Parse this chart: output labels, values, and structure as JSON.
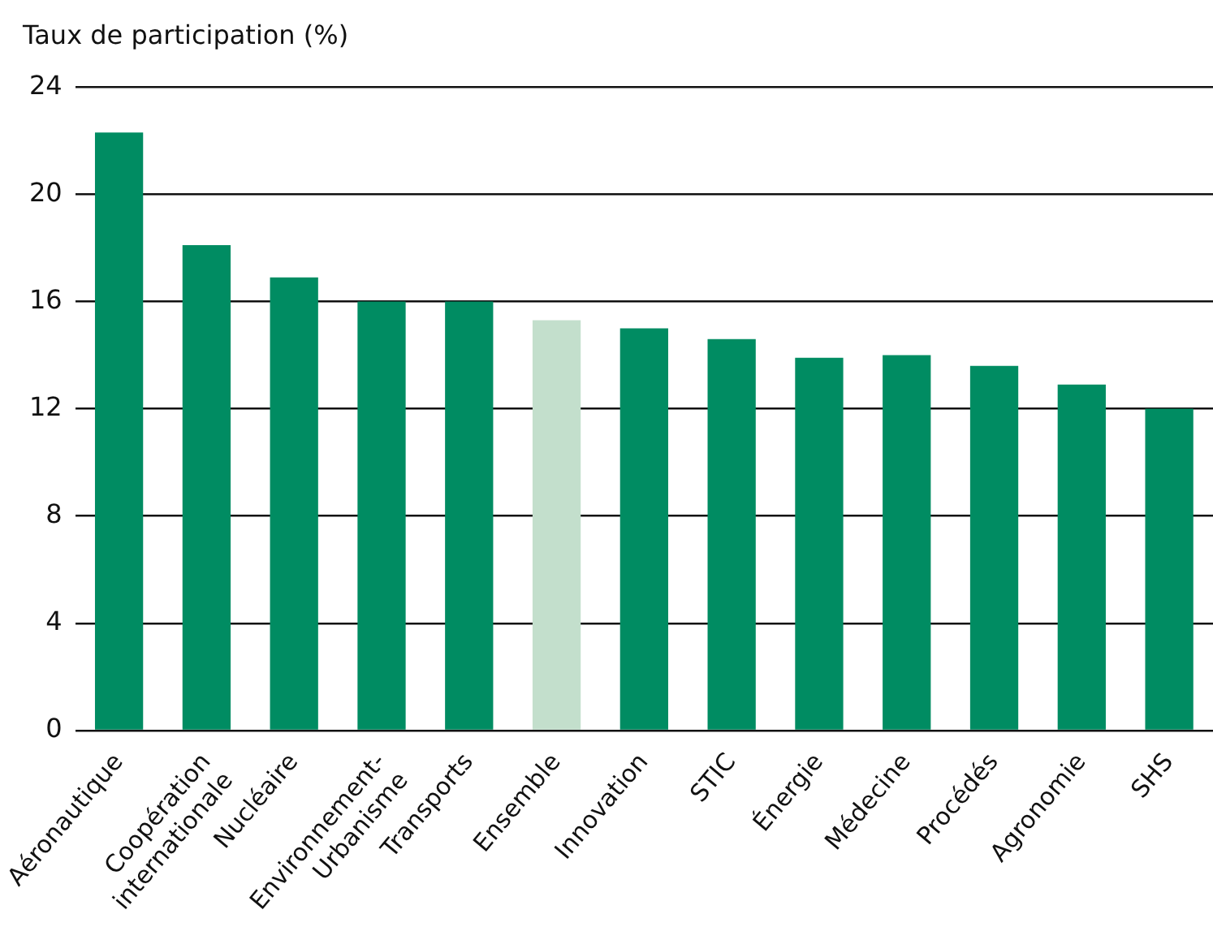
{
  "chart_data": {
    "type": "bar",
    "ylabel": "Taux de participation (%)",
    "categories": [
      "Aéronautique",
      "Coopération\ninternationale",
      "Nucléaire",
      "Environnement-\nUrbanisme",
      "Transports",
      "Ensemble",
      "Innovation",
      "STIC",
      "Énergie",
      "Médecine",
      "Procédés",
      "Agronomie",
      "SHS"
    ],
    "values": [
      22.3,
      18.1,
      16.9,
      16.0,
      16.0,
      15.3,
      15.0,
      14.6,
      13.9,
      14.0,
      13.6,
      12.9,
      12.0
    ],
    "colors": [
      "#008c62",
      "#008c62",
      "#008c62",
      "#008c62",
      "#008c62",
      "#c3dfcc",
      "#008c62",
      "#008c62",
      "#008c62",
      "#008c62",
      "#008c62",
      "#008c62",
      "#008c62"
    ],
    "ylim": [
      0,
      24
    ],
    "yticks": [
      0,
      4,
      8,
      12,
      16,
      20,
      24
    ],
    "grid": "y",
    "legend": false
  }
}
